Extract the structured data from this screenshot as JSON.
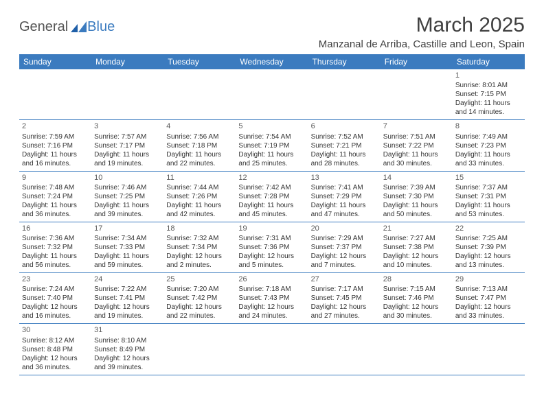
{
  "logo": {
    "text1": "General",
    "text2": "Blue",
    "gray": "#606060",
    "blue": "#3b7bbf"
  },
  "title": "March 2025",
  "location": "Manzanal de Arriba, Castille and Leon, Spain",
  "colors": {
    "header_bg": "#3b7bbf",
    "header_text": "#ffffff",
    "cell_text": "#333333",
    "border": "#3b7bbf",
    "title_text": "#404040"
  },
  "day_headers": [
    "Sunday",
    "Monday",
    "Tuesday",
    "Wednesday",
    "Thursday",
    "Friday",
    "Saturday"
  ],
  "weeks": [
    [
      null,
      null,
      null,
      null,
      null,
      null,
      {
        "n": "1",
        "sr": "8:01 AM",
        "ss": "7:15 PM",
        "dl": "11 hours and 14 minutes."
      }
    ],
    [
      {
        "n": "2",
        "sr": "7:59 AM",
        "ss": "7:16 PM",
        "dl": "11 hours and 16 minutes."
      },
      {
        "n": "3",
        "sr": "7:57 AM",
        "ss": "7:17 PM",
        "dl": "11 hours and 19 minutes."
      },
      {
        "n": "4",
        "sr": "7:56 AM",
        "ss": "7:18 PM",
        "dl": "11 hours and 22 minutes."
      },
      {
        "n": "5",
        "sr": "7:54 AM",
        "ss": "7:19 PM",
        "dl": "11 hours and 25 minutes."
      },
      {
        "n": "6",
        "sr": "7:52 AM",
        "ss": "7:21 PM",
        "dl": "11 hours and 28 minutes."
      },
      {
        "n": "7",
        "sr": "7:51 AM",
        "ss": "7:22 PM",
        "dl": "11 hours and 30 minutes."
      },
      {
        "n": "8",
        "sr": "7:49 AM",
        "ss": "7:23 PM",
        "dl": "11 hours and 33 minutes."
      }
    ],
    [
      {
        "n": "9",
        "sr": "7:48 AM",
        "ss": "7:24 PM",
        "dl": "11 hours and 36 minutes."
      },
      {
        "n": "10",
        "sr": "7:46 AM",
        "ss": "7:25 PM",
        "dl": "11 hours and 39 minutes."
      },
      {
        "n": "11",
        "sr": "7:44 AM",
        "ss": "7:26 PM",
        "dl": "11 hours and 42 minutes."
      },
      {
        "n": "12",
        "sr": "7:42 AM",
        "ss": "7:28 PM",
        "dl": "11 hours and 45 minutes."
      },
      {
        "n": "13",
        "sr": "7:41 AM",
        "ss": "7:29 PM",
        "dl": "11 hours and 47 minutes."
      },
      {
        "n": "14",
        "sr": "7:39 AM",
        "ss": "7:30 PM",
        "dl": "11 hours and 50 minutes."
      },
      {
        "n": "15",
        "sr": "7:37 AM",
        "ss": "7:31 PM",
        "dl": "11 hours and 53 minutes."
      }
    ],
    [
      {
        "n": "16",
        "sr": "7:36 AM",
        "ss": "7:32 PM",
        "dl": "11 hours and 56 minutes."
      },
      {
        "n": "17",
        "sr": "7:34 AM",
        "ss": "7:33 PM",
        "dl": "11 hours and 59 minutes."
      },
      {
        "n": "18",
        "sr": "7:32 AM",
        "ss": "7:34 PM",
        "dl": "12 hours and 2 minutes."
      },
      {
        "n": "19",
        "sr": "7:31 AM",
        "ss": "7:36 PM",
        "dl": "12 hours and 5 minutes."
      },
      {
        "n": "20",
        "sr": "7:29 AM",
        "ss": "7:37 PM",
        "dl": "12 hours and 7 minutes."
      },
      {
        "n": "21",
        "sr": "7:27 AM",
        "ss": "7:38 PM",
        "dl": "12 hours and 10 minutes."
      },
      {
        "n": "22",
        "sr": "7:25 AM",
        "ss": "7:39 PM",
        "dl": "12 hours and 13 minutes."
      }
    ],
    [
      {
        "n": "23",
        "sr": "7:24 AM",
        "ss": "7:40 PM",
        "dl": "12 hours and 16 minutes."
      },
      {
        "n": "24",
        "sr": "7:22 AM",
        "ss": "7:41 PM",
        "dl": "12 hours and 19 minutes."
      },
      {
        "n": "25",
        "sr": "7:20 AM",
        "ss": "7:42 PM",
        "dl": "12 hours and 22 minutes."
      },
      {
        "n": "26",
        "sr": "7:18 AM",
        "ss": "7:43 PM",
        "dl": "12 hours and 24 minutes."
      },
      {
        "n": "27",
        "sr": "7:17 AM",
        "ss": "7:45 PM",
        "dl": "12 hours and 27 minutes."
      },
      {
        "n": "28",
        "sr": "7:15 AM",
        "ss": "7:46 PM",
        "dl": "12 hours and 30 minutes."
      },
      {
        "n": "29",
        "sr": "7:13 AM",
        "ss": "7:47 PM",
        "dl": "12 hours and 33 minutes."
      }
    ],
    [
      {
        "n": "30",
        "sr": "8:12 AM",
        "ss": "8:48 PM",
        "dl": "12 hours and 36 minutes."
      },
      {
        "n": "31",
        "sr": "8:10 AM",
        "ss": "8:49 PM",
        "dl": "12 hours and 39 minutes."
      },
      null,
      null,
      null,
      null,
      null
    ]
  ],
  "labels": {
    "sunrise": "Sunrise:",
    "sunset": "Sunset:",
    "daylight": "Daylight:"
  }
}
